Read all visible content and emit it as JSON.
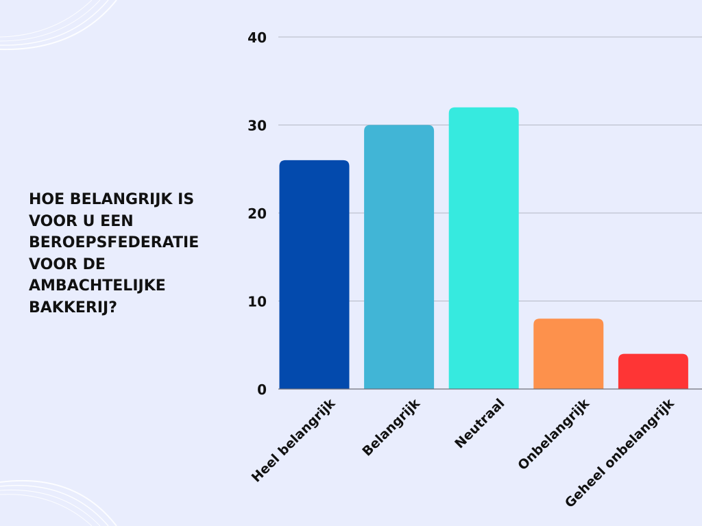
{
  "question": "HOE BELANGRIJK IS\nVOOR U EEN\nBEROEPSFEDERATIE\nVOOR DE\nAMBACHTELIJKE\nBAKKERIJ?",
  "chart_data": {
    "type": "bar",
    "categories": [
      "Heel belangrijk",
      "Belangrijk",
      "Neutraal",
      "Onbelangrijk",
      "Geheel onbelangrijk"
    ],
    "values": [
      26,
      30,
      32,
      8,
      4
    ],
    "colors": [
      "#034aad",
      "#41b5d6",
      "#36eadf",
      "#fd914c",
      "#fe3535"
    ],
    "ylim": [
      0,
      40
    ],
    "yticks": [
      0,
      10,
      20,
      30,
      40
    ],
    "grid": true,
    "legend": "none",
    "title": "",
    "xlabel": "",
    "ylabel": ""
  }
}
